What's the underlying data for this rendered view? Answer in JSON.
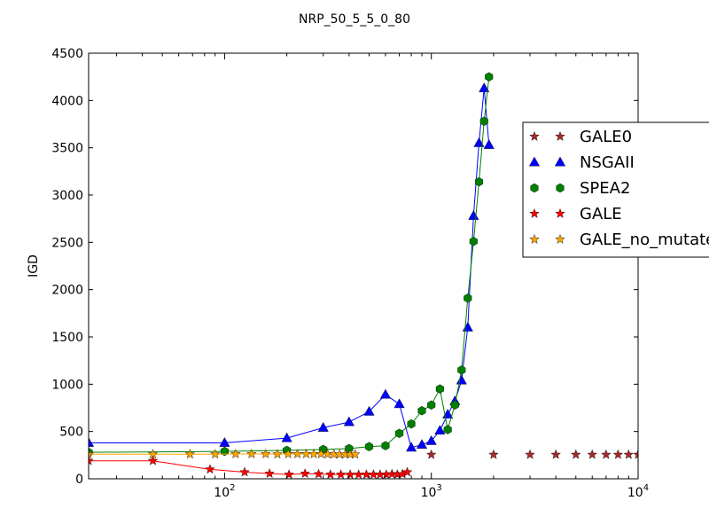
{
  "chart_data": {
    "type": "line",
    "title": "NRP_50_5_5_0_80",
    "xlabel": "",
    "ylabel": "IGD",
    "xscale": "log",
    "xlim": [
      22,
      10000
    ],
    "ylim": [
      0,
      4500
    ],
    "grid": false,
    "legend_position": "right, partially outside the plot area",
    "x_tick_labels": [
      {
        "value": 100,
        "base": "10",
        "exp": "2"
      },
      {
        "value": 1000,
        "base": "10",
        "exp": "3"
      },
      {
        "value": 10000,
        "base": "10",
        "exp": "4"
      }
    ],
    "y_ticks": [
      0,
      500,
      1000,
      1500,
      2000,
      2500,
      3000,
      3500,
      4000,
      4500
    ],
    "series": [
      {
        "name": "GALE0",
        "color": "#a52a2a",
        "marker": "star",
        "draw_line": false,
        "x": [
          1000,
          2000,
          3000,
          4000,
          5000,
          6000,
          7000,
          8000,
          9000,
          10000
        ],
        "y": [
          255,
          255,
          255,
          255,
          255,
          255,
          255,
          255,
          255,
          255
        ]
      },
      {
        "name": "NSGAII",
        "color": "#0000ff",
        "marker": "triangle",
        "draw_line": true,
        "x": [
          22,
          100,
          200,
          300,
          400,
          500,
          600,
          700,
          800,
          900,
          1000,
          1100,
          1200,
          1300,
          1400,
          1500,
          1600,
          1700,
          1800,
          1900
        ],
        "y": [
          380,
          380,
          430,
          540,
          600,
          710,
          890,
          790,
          330,
          360,
          400,
          510,
          680,
          820,
          1040,
          1600,
          2780,
          3550,
          4130,
          3530
        ]
      },
      {
        "name": "SPEA2",
        "color": "#008000",
        "marker": "hexagon",
        "draw_line": true,
        "x": [
          22,
          100,
          200,
          300,
          400,
          500,
          600,
          700,
          800,
          900,
          1000,
          1100,
          1200,
          1300,
          1400,
          1500,
          1600,
          1700,
          1800,
          1900
        ],
        "y": [
          280,
          290,
          300,
          310,
          320,
          340,
          350,
          480,
          580,
          720,
          780,
          950,
          520,
          780,
          1150,
          1910,
          2510,
          3140,
          3780,
          4250
        ]
      },
      {
        "name": "GALE",
        "color": "#ff0000",
        "marker": "star",
        "draw_line": true,
        "x": [
          22,
          45,
          85,
          125,
          165,
          205,
          245,
          285,
          325,
          365,
          405,
          445,
          485,
          525,
          565,
          605,
          645,
          685,
          725,
          765
        ],
        "y": [
          190,
          190,
          100,
          70,
          55,
          45,
          55,
          50,
          45,
          45,
          45,
          45,
          45,
          45,
          45,
          45,
          50,
          45,
          50,
          70
        ]
      },
      {
        "name": "GALE_no_mutate",
        "color": "#ffa500",
        "marker": "star",
        "draw_line": true,
        "x": [
          22,
          45,
          68,
          90,
          113,
          135,
          158,
          180,
          203,
          225,
          248,
          270,
          293,
          315,
          338,
          360,
          383,
          405,
          428
        ],
        "y": [
          260,
          260,
          260,
          260,
          262,
          262,
          262,
          260,
          262,
          262,
          262,
          262,
          262,
          260,
          258,
          258,
          258,
          258,
          258
        ]
      }
    ]
  }
}
